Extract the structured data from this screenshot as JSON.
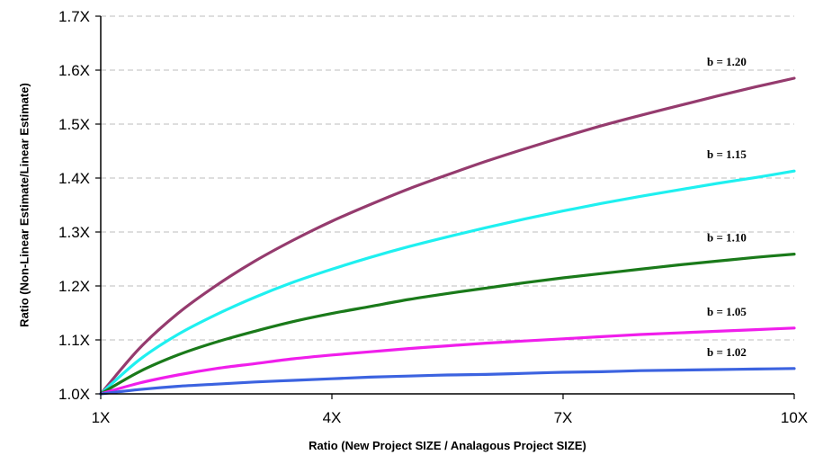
{
  "chart_data": {
    "type": "line",
    "title": "",
    "xlabel": "Ratio (New Project SIZE / Analagous Project SIZE)",
    "ylabel": "Ratio (Non-Linear Estimate/Linear Estimate)",
    "xlim": [
      1,
      10
    ],
    "ylim": [
      1.0,
      1.7
    ],
    "xticks": [
      1,
      4,
      7,
      10
    ],
    "xtick_labels": [
      "1X",
      "4X",
      "7X",
      "10X"
    ],
    "yticks": [
      1.0,
      1.1,
      1.2,
      1.3,
      1.4,
      1.5,
      1.6,
      1.7
    ],
    "ytick_labels": [
      "1.0X",
      "1.1X",
      "1.2X",
      "1.3X",
      "1.4X",
      "1.5X",
      "1.6X",
      "1.7X"
    ],
    "grid": "horizontal dashed",
    "x": [
      1,
      1.5,
      2,
      2.5,
      3,
      3.5,
      4,
      4.5,
      5,
      5.5,
      6,
      6.5,
      7,
      7.5,
      8,
      8.5,
      9,
      9.5,
      10
    ],
    "series": [
      {
        "name": "b = 1.20",
        "color": "#953B6E",
        "values": [
          1.0,
          1.084,
          1.149,
          1.201,
          1.246,
          1.285,
          1.32,
          1.351,
          1.38,
          1.406,
          1.431,
          1.454,
          1.476,
          1.497,
          1.516,
          1.534,
          1.552,
          1.569,
          1.585
        ]
      },
      {
        "name": "b = 1.15",
        "color": "#1FF0F0",
        "values": [
          1.0,
          1.063,
          1.11,
          1.147,
          1.179,
          1.207,
          1.231,
          1.253,
          1.273,
          1.291,
          1.308,
          1.324,
          1.339,
          1.353,
          1.366,
          1.378,
          1.39,
          1.401,
          1.413
        ]
      },
      {
        "name": "b = 1.10",
        "color": "#1A7A1A",
        "values": [
          1.0,
          1.041,
          1.072,
          1.096,
          1.116,
          1.134,
          1.149,
          1.162,
          1.175,
          1.186,
          1.196,
          1.206,
          1.215,
          1.223,
          1.231,
          1.239,
          1.246,
          1.253,
          1.259
        ]
      },
      {
        "name": "b = 1.05",
        "color": "#F01EEB",
        "values": [
          1.0,
          1.02,
          1.035,
          1.047,
          1.056,
          1.065,
          1.072,
          1.078,
          1.084,
          1.089,
          1.094,
          1.098,
          1.102,
          1.106,
          1.11,
          1.113,
          1.116,
          1.119,
          1.122
        ]
      },
      {
        "name": "b = 1.02",
        "color": "#3C63E0",
        "values": [
          1.0,
          1.008,
          1.014,
          1.018,
          1.022,
          1.025,
          1.028,
          1.031,
          1.033,
          1.035,
          1.036,
          1.038,
          1.04,
          1.041,
          1.043,
          1.044,
          1.045,
          1.046,
          1.047
        ]
      }
    ]
  }
}
